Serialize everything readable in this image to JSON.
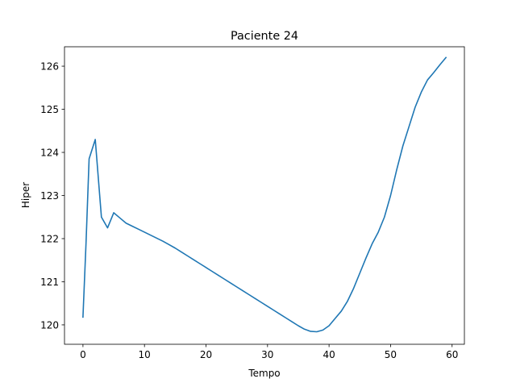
{
  "chart_data": {
    "type": "line",
    "title": "Paciente 24",
    "xlabel": "Tempo",
    "ylabel": "Hiper",
    "xlim": [
      -3,
      62
    ],
    "ylim": [
      119.55,
      126.45
    ],
    "xticks": [
      0,
      10,
      20,
      30,
      40,
      50,
      60
    ],
    "yticks": [
      120,
      121,
      122,
      123,
      124,
      125,
      126
    ],
    "grid": false,
    "series": [
      {
        "color": "#1f77b4",
        "x": [
          0,
          0.5,
          1,
          2,
          3,
          4,
          5,
          6,
          7,
          8,
          9,
          10,
          11,
          12,
          13,
          14,
          15,
          16,
          17,
          18,
          19,
          20,
          21,
          22,
          23,
          24,
          25,
          26,
          27,
          28,
          29,
          30,
          31,
          32,
          33,
          34,
          35,
          36,
          37,
          38,
          39,
          40,
          41,
          42,
          43,
          44,
          45,
          46,
          47,
          48,
          49,
          50,
          51,
          52,
          53,
          54,
          55,
          56,
          57,
          58,
          59
        ],
        "y": [
          120.18,
          121.9,
          123.85,
          124.3,
          122.5,
          122.25,
          122.6,
          122.48,
          122.36,
          122.29,
          122.22,
          122.15,
          122.08,
          122.01,
          121.94,
          121.86,
          121.78,
          121.69,
          121.6,
          121.51,
          121.42,
          121.33,
          121.24,
          121.15,
          121.06,
          120.97,
          120.88,
          120.79,
          120.7,
          120.61,
          120.52,
          120.43,
          120.34,
          120.25,
          120.16,
          120.07,
          119.98,
          119.9,
          119.85,
          119.84,
          119.88,
          119.98,
          120.15,
          120.32,
          120.55,
          120.85,
          121.2,
          121.55,
          121.88,
          122.15,
          122.5,
          123.0,
          123.6,
          124.15,
          124.6,
          125.05,
          125.4,
          125.68,
          125.85,
          126.03,
          126.2
        ]
      }
    ]
  }
}
